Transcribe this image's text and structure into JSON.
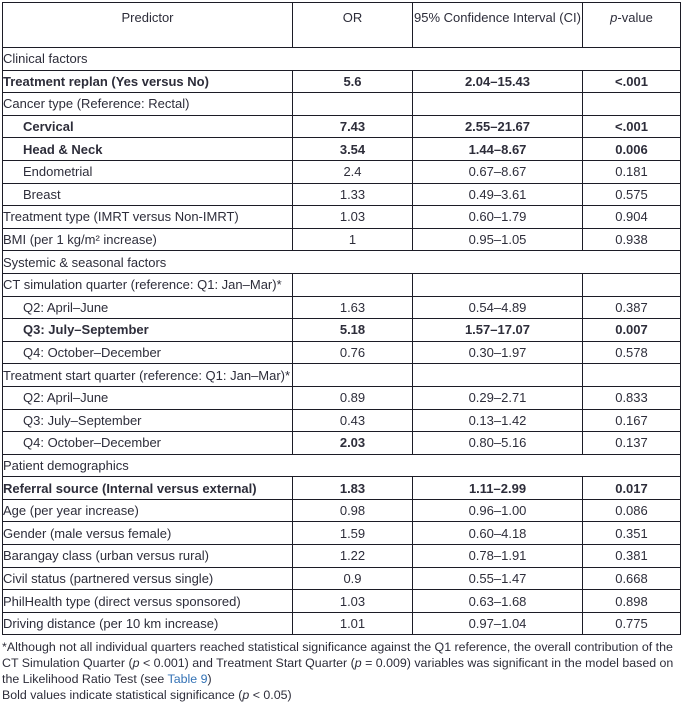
{
  "page": {
    "background_color": "#ffffff",
    "text_color": "#2d2d3a",
    "border_color": "#1c1c26",
    "link_color": "#3472b5"
  },
  "table": {
    "columns": [
      {
        "label": "Predictor"
      },
      {
        "label": "OR"
      },
      {
        "label": "95% Confidence Interval (CI)"
      },
      {
        "label_italic": "p",
        "label_rest": "-value"
      }
    ],
    "rows": [
      {
        "kind": "section",
        "label": "Clinical factors"
      },
      {
        "kind": "data",
        "label": "Treatment replan (Yes versus No)",
        "or": "5.6",
        "ci": "2.04–15.43",
        "p": "<.001",
        "bold": true,
        "indent": false
      },
      {
        "kind": "group",
        "label": "Cancer type (Reference: Rectal)"
      },
      {
        "kind": "data",
        "label": "Cervical",
        "or": "7.43",
        "ci": "2.55–21.67",
        "p": "<.001",
        "bold": true,
        "indent": true
      },
      {
        "kind": "data",
        "label": "Head & Neck",
        "or": "3.54",
        "ci": "1.44–8.67",
        "p": "0.006",
        "bold": true,
        "indent": true
      },
      {
        "kind": "data",
        "label": "Endometrial",
        "or": "2.4",
        "ci": "0.67–8.67",
        "p": "0.181",
        "bold": false,
        "indent": true
      },
      {
        "kind": "data",
        "label": "Breast",
        "or": "1.33",
        "ci": "0.49–3.61",
        "p": "0.575",
        "bold": false,
        "indent": true
      },
      {
        "kind": "data",
        "label": "Treatment type (IMRT versus Non-IMRT)",
        "or": "1.03",
        "ci": "0.60–1.79",
        "p": "0.904",
        "bold": false,
        "indent": false
      },
      {
        "kind": "data",
        "label": "BMI (per 1 kg/m² increase)",
        "or": "1",
        "ci": "0.95–1.05",
        "p": "0.938",
        "bold": false,
        "indent": false
      },
      {
        "kind": "section",
        "label": "Systemic & seasonal factors"
      },
      {
        "kind": "group",
        "label": "CT simulation quarter (reference: Q1: Jan–Mar)*"
      },
      {
        "kind": "data",
        "label": "Q2: April–June",
        "or": "1.63",
        "ci": "0.54–4.89",
        "p": "0.387",
        "bold": false,
        "indent": true
      },
      {
        "kind": "data",
        "label": "Q3: July–September",
        "or": "5.18",
        "ci": "1.57–17.07",
        "p": "0.007",
        "bold": true,
        "indent": true
      },
      {
        "kind": "data",
        "label": "Q4: October–December",
        "or": "0.76",
        "ci": "0.30–1.97",
        "p": "0.578",
        "bold": false,
        "indent": true
      },
      {
        "kind": "group",
        "label": "Treatment start quarter (reference: Q1: Jan–Mar)*"
      },
      {
        "kind": "data",
        "label": "Q2: April–June",
        "or": "0.89",
        "ci": "0.29–2.71",
        "p": "0.833",
        "bold": false,
        "indent": true
      },
      {
        "kind": "data",
        "label": "Q3: July–September",
        "or": "0.43",
        "ci": "0.13–1.42",
        "p": "0.167",
        "bold": false,
        "indent": true
      },
      {
        "kind": "data",
        "label": "Q4: October–December",
        "or": "2.03",
        "ci": "0.80–5.16",
        "p": "0.137",
        "bold": false,
        "or_bold": true,
        "indent": true
      },
      {
        "kind": "section",
        "label": "Patient demographics"
      },
      {
        "kind": "data",
        "label": "Referral source (Internal versus external)",
        "or": "1.83",
        "ci": "1.11–2.99",
        "p": "0.017",
        "bold": true,
        "indent": false
      },
      {
        "kind": "data",
        "label": "Age (per year increase)",
        "or": "0.98",
        "ci": "0.96–1.00",
        "p": "0.086",
        "bold": false,
        "indent": false
      },
      {
        "kind": "data",
        "label": "Gender (male versus female)",
        "or": "1.59",
        "ci": "0.60–4.18",
        "p": "0.351",
        "bold": false,
        "indent": false
      },
      {
        "kind": "data",
        "label": "Barangay class (urban versus rural)",
        "or": "1.22",
        "ci": "0.78–1.91",
        "p": "0.381",
        "bold": false,
        "indent": false
      },
      {
        "kind": "data",
        "label": "Civil status (partnered versus single)",
        "or": "0.9",
        "ci": "0.55–1.47",
        "p": "0.668",
        "bold": false,
        "indent": false
      },
      {
        "kind": "data",
        "label": "PhilHealth type (direct versus sponsored)",
        "or": "1.03",
        "ci": "0.63–1.68",
        "p": "0.898",
        "bold": false,
        "indent": false
      },
      {
        "kind": "data",
        "label": "Driving distance (per 10 km increase)",
        "or": "1.01",
        "ci": "0.97–1.04",
        "p": "0.775",
        "bold": false,
        "indent": false
      }
    ]
  },
  "footnotes": {
    "asterisk_note": [
      {
        "t": "*Although not all individual quarters reached statistical significance against the Q1 reference, the overall contribution of the CT Simulation Quarter ("
      },
      {
        "t": "p",
        "style": "italic"
      },
      {
        "t": " < 0.001) and Treatment Start Quarter ("
      },
      {
        "t": "p",
        "style": "italic"
      },
      {
        "t": " = 0.009) variables was significant in the model based on the Likelihood Ratio Test (see "
      },
      {
        "t": "Table 9",
        "style": "link"
      },
      {
        "t": ")"
      }
    ],
    "bold_note": [
      {
        "t": "Bold values indicate statistical significance ("
      },
      {
        "t": "p",
        "style": "italic"
      },
      {
        "t": " < 0.05)"
      }
    ]
  }
}
